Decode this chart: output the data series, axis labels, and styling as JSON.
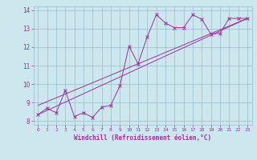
{
  "title": "",
  "xlabel": "Windchill (Refroidissement éolien,°C)",
  "ylabel": "",
  "bg_color": "#cce8ee",
  "line_color": "#993399",
  "grid_color": "#99bbcc",
  "xlim": [
    -0.5,
    23.5
  ],
  "ylim": [
    7.8,
    14.2
  ],
  "xticks": [
    0,
    1,
    2,
    3,
    4,
    5,
    6,
    7,
    8,
    9,
    10,
    11,
    12,
    13,
    14,
    15,
    16,
    17,
    18,
    19,
    20,
    21,
    22,
    23
  ],
  "yticks": [
    8,
    9,
    10,
    11,
    12,
    13,
    14
  ],
  "series1_x": [
    0,
    1,
    2,
    3,
    4,
    5,
    6,
    7,
    8,
    9,
    10,
    11,
    12,
    13,
    14,
    15,
    16,
    17,
    18,
    19,
    20,
    21,
    22,
    23
  ],
  "series1_y": [
    8.35,
    8.7,
    8.45,
    9.65,
    8.25,
    8.45,
    8.2,
    8.75,
    8.85,
    9.9,
    12.05,
    11.1,
    12.55,
    13.75,
    13.3,
    13.05,
    13.05,
    13.75,
    13.5,
    12.7,
    12.75,
    13.55,
    13.55,
    13.55
  ],
  "series2_x": [
    0,
    23
  ],
  "series2_y": [
    8.35,
    13.55
  ],
  "series3_x": [
    0,
    23
  ],
  "series3_y": [
    8.85,
    13.55
  ]
}
